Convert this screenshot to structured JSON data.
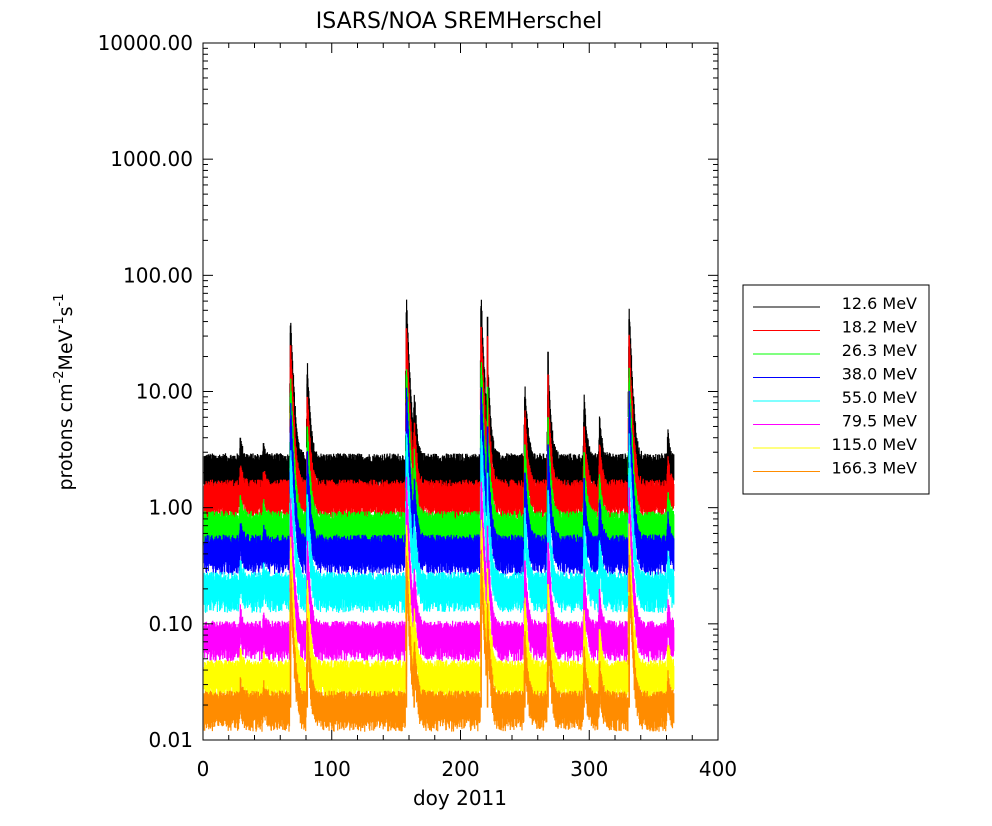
{
  "chart_data": {
    "type": "line",
    "title": "ISARS/NOA   SREMHerschel",
    "xlabel": "doy 2011",
    "ylabel_parts": {
      "base": "protons cm",
      "exp1": "-2",
      "mid1": "MeV",
      "exp2": "-1",
      "mid2": "s",
      "exp3": "-1"
    },
    "xlim": [
      0,
      400
    ],
    "ylim": [
      0.01,
      10000
    ],
    "yscale": "log",
    "x_ticks": [
      "0",
      "100",
      "200",
      "300",
      "400"
    ],
    "y_ticks": [
      "0.01",
      "0.10",
      "1.00",
      "10.00",
      "100.00",
      "1000.00",
      "10000.00"
    ],
    "grid": false,
    "legend_position": "right",
    "data_x_range": [
      1,
      366
    ],
    "events": [
      {
        "doy": 29,
        "amp": 0.5
      },
      {
        "doy": 47,
        "amp": 0.35
      },
      {
        "doy": 68,
        "amp": 16
      },
      {
        "doy": 81,
        "amp": 5.5
      },
      {
        "doy": 158,
        "amp": 22
      },
      {
        "doy": 164,
        "amp": 2.4
      },
      {
        "doy": 216,
        "amp": 24
      },
      {
        "doy": 221,
        "amp": 5
      },
      {
        "doy": 250,
        "amp": 3.5
      },
      {
        "doy": 268,
        "amp": 5.5
      },
      {
        "doy": 296,
        "amp": 2.3
      },
      {
        "doy": 308,
        "amp": 1.4
      },
      {
        "doy": 331,
        "amp": 19
      },
      {
        "doy": 361,
        "amp": 0.8
      }
    ],
    "series": [
      {
        "name": "12.6 MeV",
        "color": "#000000",
        "baseline": 2.1,
        "values": [
          2.1,
          4.0,
          3.6,
          37,
          14,
          48,
          5.0,
          52,
          44,
          9,
          22,
          7,
          4,
          42,
          3.8
        ]
      },
      {
        "name": "18.2 MeV",
        "color": "#ff0000",
        "baseline": 1.25,
        "values": [
          1.25,
          2.2,
          2.0,
          25,
          9,
          35,
          3.2,
          36,
          30,
          6,
          14,
          5,
          3,
          30,
          2.3
        ]
      },
      {
        "name": "26.3 MeV",
        "color": "#00ff00",
        "baseline": 0.67,
        "values": [
          0.67,
          1.25,
          1.1,
          9,
          5,
          14,
          1.9,
          13,
          11,
          3.5,
          6,
          3,
          1.8,
          12,
          1.2
        ]
      },
      {
        "name": "38.0 MeV",
        "color": "#0000ff",
        "baseline": 0.42,
        "values": [
          0.42,
          0.6,
          0.55,
          5,
          3,
          8,
          1.1,
          7,
          5,
          2,
          3.5,
          1.8,
          1.1,
          6,
          0.7
        ]
      },
      {
        "name": "55.0 MeV",
        "color": "#00ffff",
        "baseline": 0.2,
        "values": [
          0.2,
          0.3,
          0.27,
          2.2,
          1.3,
          3,
          0.5,
          3,
          2,
          1,
          1.4,
          0.7,
          0.5,
          2.2,
          0.3
        ]
      },
      {
        "name": "79.5 MeV",
        "color": "#ff00ff",
        "baseline": 0.076,
        "values": [
          0.076,
          0.11,
          0.1,
          0.7,
          0.45,
          1,
          0.17,
          0.9,
          0.7,
          0.35,
          0.5,
          0.25,
          0.2,
          0.8,
          0.1
        ]
      },
      {
        "name": "115.0 MeV",
        "color": "#ffff00",
        "baseline": 0.035,
        "values": [
          0.035,
          0.05,
          0.045,
          0.3,
          0.2,
          0.4,
          0.08,
          0.4,
          0.3,
          0.15,
          0.22,
          0.12,
          0.09,
          0.3,
          0.05
        ]
      },
      {
        "name": "166.3 MeV",
        "color": "#ff8c00",
        "baseline": 0.019,
        "values": [
          0.019,
          0.026,
          0.024,
          0.15,
          0.1,
          0.2,
          0.04,
          0.2,
          0.15,
          0.08,
          0.1,
          0.06,
          0.045,
          0.15,
          0.026
        ]
      }
    ]
  }
}
